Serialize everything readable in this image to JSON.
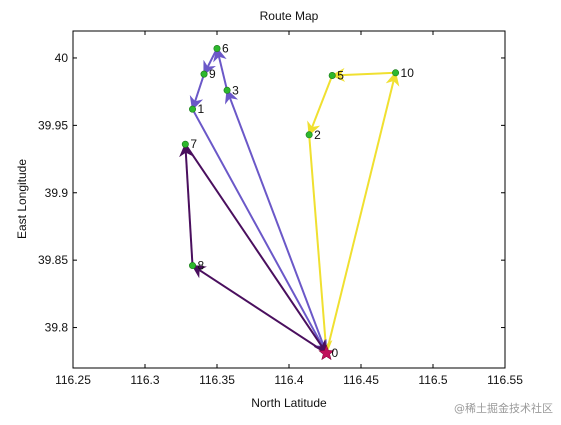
{
  "chart_data": {
    "type": "line",
    "title": "Route Map",
    "xlabel": "North Latitude",
    "ylabel": "East Longitude",
    "xlim": [
      116.25,
      116.55
    ],
    "ylim": [
      39.77,
      40.02
    ],
    "x_ticks": [
      116.25,
      116.3,
      116.35,
      116.4,
      116.45,
      116.5,
      116.55
    ],
    "x_tick_labels": [
      "116.25",
      "116.3",
      "116.35",
      "116.4",
      "116.45",
      "116.5",
      "116.55"
    ],
    "y_ticks": [
      39.8,
      39.85,
      39.9,
      39.95,
      40
    ],
    "y_tick_labels": [
      "39.8",
      "39.85",
      "39.9",
      "39.95",
      "40"
    ],
    "grid": false,
    "points": [
      {
        "label": "0",
        "x": 116.426,
        "y": 39.781
      },
      {
        "label": "1",
        "x": 116.333,
        "y": 39.962
      },
      {
        "label": "2",
        "x": 116.414,
        "y": 39.943
      },
      {
        "label": "3",
        "x": 116.357,
        "y": 39.976
      },
      {
        "label": "5",
        "x": 116.43,
        "y": 39.987
      },
      {
        "label": "6",
        "x": 116.35,
        "y": 40.007
      },
      {
        "label": "7",
        "x": 116.328,
        "y": 39.936
      },
      {
        "label": "8",
        "x": 116.333,
        "y": 39.846
      },
      {
        "label": "9",
        "x": 116.341,
        "y": 39.988
      },
      {
        "label": "10",
        "x": 116.474,
        "y": 39.989
      }
    ],
    "depot": {
      "label": "0",
      "x": 116.426,
      "y": 39.781
    },
    "series": [
      {
        "color": "#f0e030",
        "route": [
          "0",
          "10",
          "5",
          "2",
          "0"
        ]
      },
      {
        "color": "#6b58c8",
        "route": [
          "0",
          "3",
          "6",
          "9",
          "1",
          "0"
        ]
      },
      {
        "color": "#4a0f5e",
        "route": [
          "0",
          "8",
          "7",
          "0"
        ]
      }
    ],
    "marker_color": "#2db82d",
    "depot_marker_color": "#c0105a"
  },
  "watermark": "@稀土掘金技术社区"
}
